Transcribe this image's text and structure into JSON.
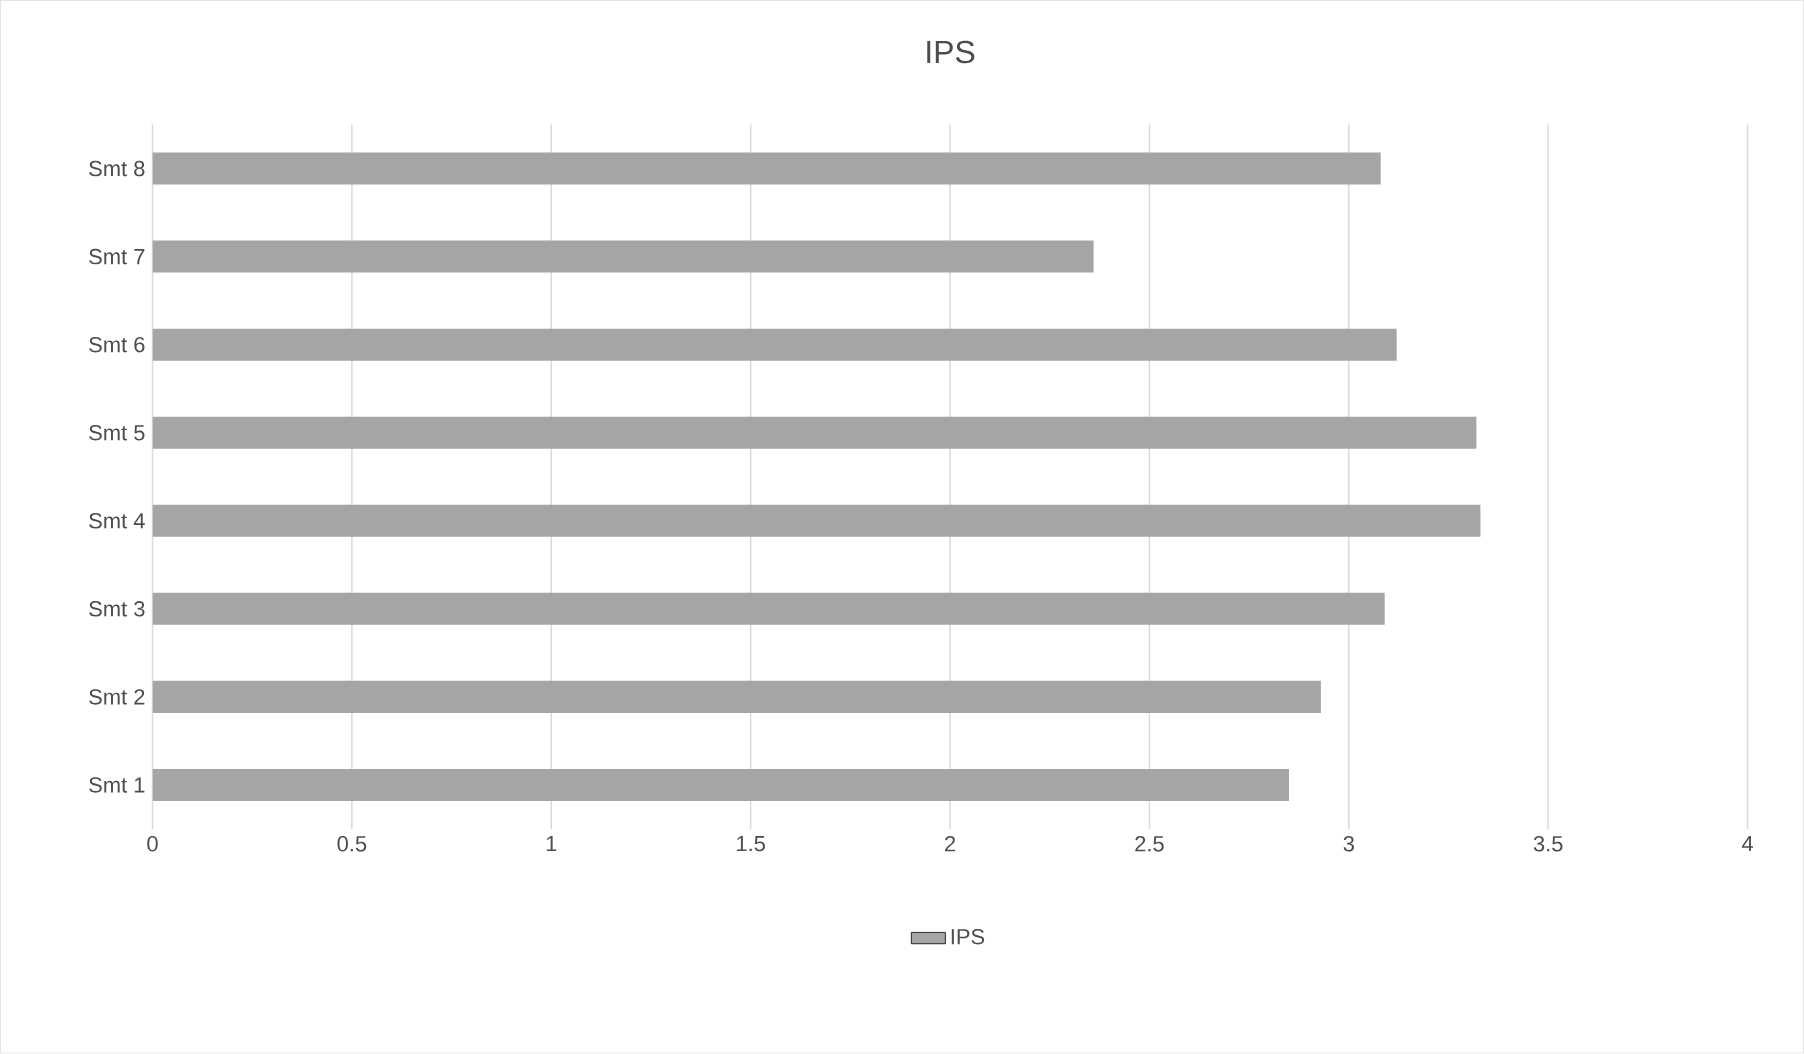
{
  "chart_data": {
    "type": "bar",
    "orientation": "horizontal",
    "title": "IPS",
    "categories": [
      "Smt 8",
      "Smt 7",
      "Smt 6",
      "Smt 5",
      "Smt 4",
      "Smt 3",
      "Smt 2",
      "Smt 1"
    ],
    "series": [
      {
        "name": "IPS",
        "color": "#a5a5a5",
        "values": [
          3.08,
          2.36,
          3.12,
          3.32,
          3.33,
          3.09,
          2.93,
          2.85
        ]
      }
    ],
    "xlim": [
      0,
      4
    ],
    "xticks": [
      0,
      0.5,
      1,
      1.5,
      2,
      2.5,
      3,
      3.5,
      4
    ],
    "grid": "x",
    "legend": "bottom"
  }
}
